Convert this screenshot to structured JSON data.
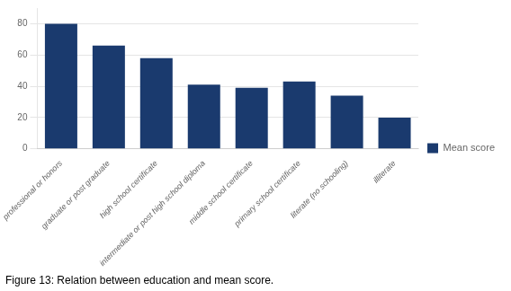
{
  "chart_data": {
    "type": "bar",
    "title": "Figure 13: Relation between education and mean score.",
    "categories": [
      "professional or honors",
      "graduate or post graduate",
      "high school certificate",
      "intermediate or post high school diploma",
      "middle school certificate",
      "primary school certificate",
      "literate (no schooling)",
      "illiterate"
    ],
    "series": [
      {
        "name": "Mean score",
        "color": "#1a3a6e",
        "values": [
          80,
          66,
          58,
          41,
          39,
          43,
          34,
          20
        ]
      }
    ],
    "ylim": [
      0,
      90
    ],
    "yticks": [
      0,
      20,
      40,
      60,
      80
    ],
    "grid": true,
    "legend": "right"
  }
}
